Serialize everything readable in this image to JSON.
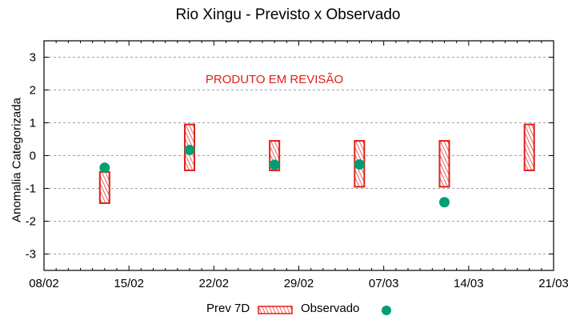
{
  "chart_data": {
    "type": "floating-bar+scatter",
    "title": "Rio Xingu - Previsto x Observado",
    "xlabel": "",
    "ylabel": "Anomalia Categorizada",
    "annotation": "PRODUTO EM REVISÃO",
    "xlim": [
      "08/02",
      "21/03"
    ],
    "ylim": [
      -3.5,
      3.5
    ],
    "x_ticks": [
      "08/02",
      "15/02",
      "22/02",
      "29/02",
      "07/03",
      "14/03",
      "21/03"
    ],
    "y_ticks": [
      3,
      2,
      1,
      0,
      -1,
      -2,
      -3
    ],
    "grid": "horizontal dashed",
    "legend_position": "bottom",
    "series": [
      {
        "name": "Prev 7D",
        "kind": "range-box",
        "color": "#e0201b",
        "points": [
          {
            "x": "13/02",
            "low": -1.45,
            "high": -0.5
          },
          {
            "x": "20/02",
            "low": -0.45,
            "high": 0.95
          },
          {
            "x": "27/02",
            "low": -0.45,
            "high": 0.45
          },
          {
            "x": "05/03",
            "low": -0.95,
            "high": 0.45
          },
          {
            "x": "12/03",
            "low": -0.95,
            "high": 0.45
          },
          {
            "x": "19/03",
            "low": -0.45,
            "high": 0.95
          }
        ]
      },
      {
        "name": "Observado",
        "kind": "point",
        "color": "#009e73",
        "points": [
          {
            "x": "13/02",
            "y": -0.37
          },
          {
            "x": "20/02",
            "y": 0.17
          },
          {
            "x": "27/02",
            "y": -0.28
          },
          {
            "x": "05/03",
            "y": -0.27
          },
          {
            "x": "12/03",
            "y": -1.42
          }
        ]
      }
    ]
  },
  "legend": {
    "prev_label": "Prev 7D",
    "obs_label": "Observado"
  }
}
